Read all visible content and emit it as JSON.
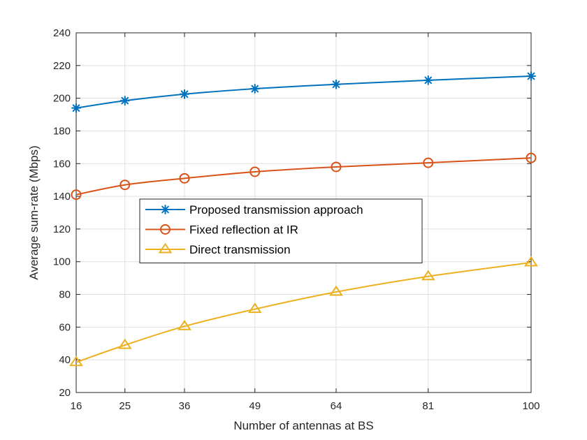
{
  "chart_data": {
    "type": "line",
    "title": "",
    "xlabel": "Number of antennas at BS",
    "ylabel": "Average sum-rate (Mbps)",
    "x": [
      16,
      25,
      36,
      49,
      64,
      81,
      100
    ],
    "xtick_labels": [
      "16",
      "25",
      "36",
      "49",
      "64",
      "81",
      "100"
    ],
    "xlim": [
      16,
      100
    ],
    "ylim": [
      20,
      240
    ],
    "yticks": [
      20,
      40,
      60,
      80,
      100,
      120,
      140,
      160,
      180,
      200,
      220,
      240
    ],
    "grid": true,
    "legend_position": "center-left",
    "series": [
      {
        "name": "Proposed transmission approach",
        "color": "#0072BD",
        "marker": "asterisk",
        "values": [
          194,
          198.5,
          202.5,
          205.8,
          208.5,
          211,
          213.5
        ]
      },
      {
        "name": "Fixed reflection at IR",
        "color": "#D95319",
        "marker": "circle",
        "values": [
          141,
          147,
          151,
          155,
          158,
          160.5,
          163.5
        ]
      },
      {
        "name": "Direct transmission",
        "color": "#EDB120",
        "marker": "triangle",
        "values": [
          38.5,
          49,
          60.5,
          71,
          81.5,
          91,
          99.5
        ]
      }
    ]
  }
}
